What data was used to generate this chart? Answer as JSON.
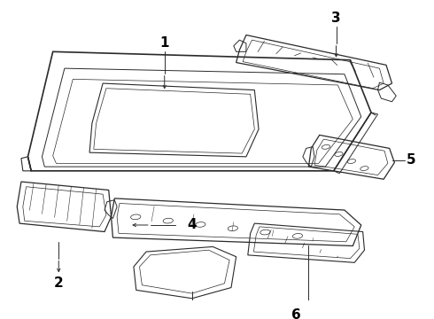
{
  "bg_color": "#ffffff",
  "line_color": "#2a2a2a",
  "label_color": "#000000",
  "figsize": [
    4.9,
    3.6
  ],
  "dpi": 100,
  "label_fontsize": 10
}
